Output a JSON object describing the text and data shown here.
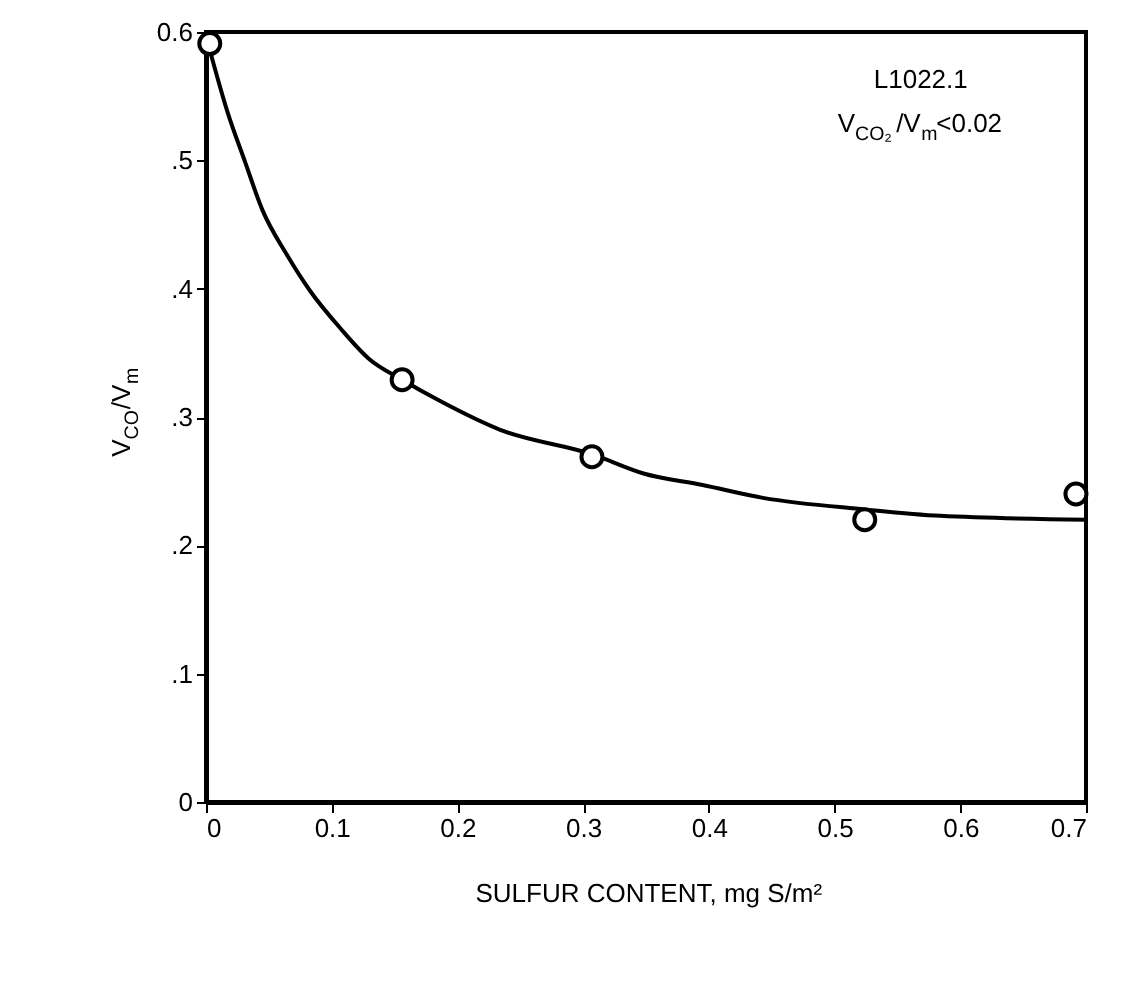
{
  "chart_data": {
    "type": "scatter",
    "xlabel": "SULFUR CONTENT, mg S/m²",
    "ylabel": "V$_{CO}$/V$_{m}$",
    "annotations": [
      "L1022.1",
      "V$_{CO₂}$/V$_{m}$<0.02"
    ],
    "xlim": [
      0,
      0.7
    ],
    "xticks": [
      0,
      0.1,
      0.2,
      0.3,
      0.4,
      0.5,
      0.6,
      0.7
    ],
    "ylim": [
      0,
      0.6
    ],
    "yticks": [
      0,
      {
        "value": 0.1,
        "label": ".1"
      },
      {
        "value": 0.2,
        "label": ".2"
      },
      {
        "value": 0.3,
        "label": ".3"
      },
      {
        "value": 0.4,
        "label": ".4"
      },
      {
        "value": 0.5,
        "label": ".5"
      },
      0.6
    ],
    "grid": false,
    "series": [
      {
        "color": "#000000",
        "marker": "circle",
        "x": [
          0.003,
          0.156,
          0.307,
          0.524,
          0.692
        ],
        "values": [
          0.591,
          0.329,
          0.269,
          0.22,
          0.24
        ]
      },
      {
        "type": "line",
        "color": "#000000",
        "line_style": "solid",
        "marker": "none",
        "x": [
          0.003,
          0.017,
          0.031,
          0.045,
          0.064,
          0.083,
          0.107,
          0.13,
          0.156,
          0.187,
          0.234,
          0.307,
          0.348,
          0.395,
          0.443,
          0.524,
          0.584,
          0.7
        ],
        "values": [
          0.586,
          0.538,
          0.499,
          0.461,
          0.427,
          0.398,
          0.369,
          0.345,
          0.329,
          0.312,
          0.29,
          0.271,
          0.256,
          0.247,
          0.237,
          0.228,
          0.223,
          0.22
        ]
      }
    ]
  }
}
